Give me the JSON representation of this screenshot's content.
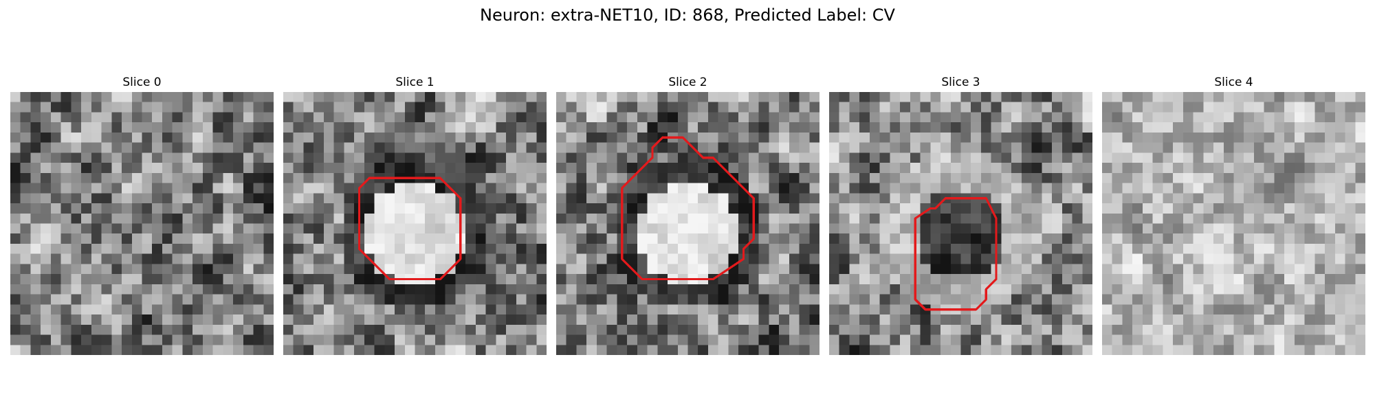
{
  "figure": {
    "title": "Neuron: extra-NET10, ID: 868, Predicted Label: CV",
    "roi_color": "#e31a1c"
  },
  "slices": [
    {
      "label": "Slice 0",
      "has_roi": false,
      "seed": 11,
      "tone": "mixed"
    },
    {
      "label": "Slice 1",
      "has_roi": true,
      "seed": 23,
      "tone": "bright-center"
    },
    {
      "label": "Slice 2",
      "has_roi": true,
      "seed": 37,
      "tone": "bright-center"
    },
    {
      "label": "Slice 3",
      "has_roi": true,
      "seed": 51,
      "tone": "dark-center"
    },
    {
      "label": "Slice 4",
      "has_roi": false,
      "seed": 67,
      "tone": "light"
    }
  ]
}
